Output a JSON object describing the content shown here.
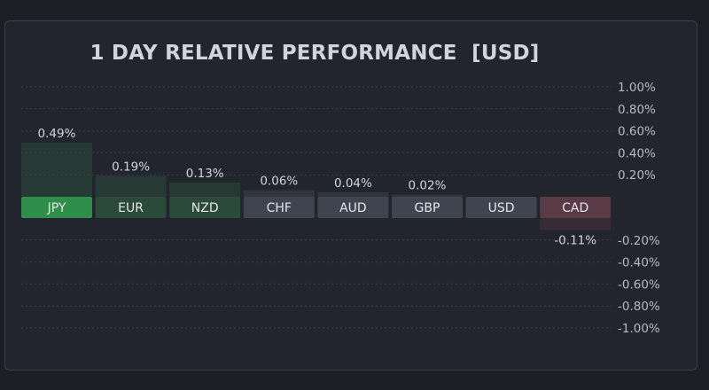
{
  "chart_data": {
    "type": "bar",
    "title": "1 DAY RELATIVE PERFORMANCE  [USD]",
    "xlabel": "",
    "ylabel": "",
    "categories": [
      "JPY",
      "EUR",
      "NZD",
      "CHF",
      "AUD",
      "GBP",
      "USD",
      "CAD"
    ],
    "values": [
      0.49,
      0.19,
      0.13,
      0.06,
      0.04,
      0.02,
      0.0,
      -0.11
    ],
    "value_labels": [
      "0.49%",
      "0.19%",
      "0.13%",
      "0.06%",
      "0.04%",
      "0.02%",
      "",
      "-0.11%"
    ],
    "ylim": [
      -1.0,
      1.0
    ],
    "y_ticks": [
      1.0,
      0.8,
      0.6,
      0.4,
      0.2,
      -0.2,
      -0.4,
      -0.6,
      -0.8,
      -1.0
    ],
    "y_tick_labels": [
      "1.00%",
      "0.80%",
      "0.60%",
      "0.40%",
      "0.20%",
      "-0.20%",
      "-0.40%",
      "-0.60%",
      "-0.80%",
      "-1.00%"
    ],
    "y_axis_position": "right",
    "grid": true,
    "legend": "none",
    "colors": {
      "positive_strong": "#2f8f4a",
      "positive_mid": "#2b4a3a",
      "neutral": "#3e4450",
      "negative": "#5a3a45",
      "grid": "#3a3e48"
    }
  }
}
